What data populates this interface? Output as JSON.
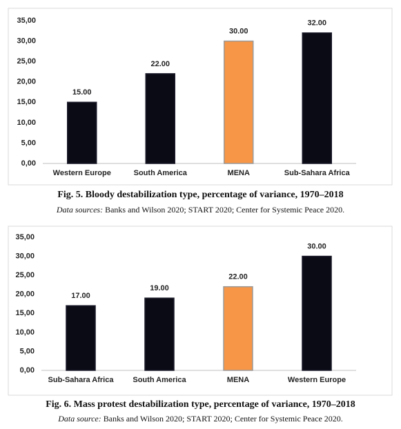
{
  "chart_data": [
    {
      "type": "bar",
      "title": "Fig. 5. Bloody destabilization type, percentage of variance, 1970–2018",
      "source_label": "Data sources:",
      "source": "Banks and Wilson 2020; START 2020; Center for Systemic Peace 2020.",
      "categories": [
        "Western Europe",
        "South America",
        "MENA",
        "Sub-Sahara Africa"
      ],
      "values": [
        15,
        22,
        30,
        32
      ],
      "value_labels": [
        "15.00",
        "22.00",
        "30.00",
        "32.00"
      ],
      "colors": [
        "#0b0b16",
        "#0b0b16",
        "#f79646",
        "#0b0b16"
      ],
      "ylim": [
        0,
        35
      ],
      "yticks": [
        {
          "value": 0,
          "label": "0,00"
        },
        {
          "value": 5,
          "label": "5,00"
        },
        {
          "value": 10,
          "label": "10,00"
        },
        {
          "value": 15,
          "label": "15,00"
        },
        {
          "value": 20,
          "label": "20,00"
        },
        {
          "value": 25,
          "label": "25,00"
        },
        {
          "value": 30,
          "label": "30,00"
        },
        {
          "value": 35,
          "label": "35,00"
        }
      ]
    },
    {
      "type": "bar",
      "title": "Fig. 6. Mass protest destabilization type, percentage of variance, 1970–2018",
      "source_label": "Data source:",
      "source": "Banks and Wilson 2020; START 2020; Center for Systemic Peace 2020.",
      "categories": [
        "Sub-Sahara Africa",
        "South America",
        "MENA",
        "Western Europe"
      ],
      "values": [
        17,
        19,
        22,
        30
      ],
      "value_labels": [
        "17.00",
        "19.00",
        "22.00",
        "30.00"
      ],
      "colors": [
        "#0b0b16",
        "#0b0b16",
        "#f79646",
        "#0b0b16"
      ],
      "ylim": [
        0,
        35
      ],
      "yticks": [
        {
          "value": 0,
          "label": "0,00"
        },
        {
          "value": 5,
          "label": "5,00"
        },
        {
          "value": 10,
          "label": "10,00"
        },
        {
          "value": 15,
          "label": "15,00"
        },
        {
          "value": 20,
          "label": "20,00"
        },
        {
          "value": 25,
          "label": "25,00"
        },
        {
          "value": 30,
          "label": "30,00"
        },
        {
          "value": 35,
          "label": "35,00"
        }
      ]
    }
  ]
}
